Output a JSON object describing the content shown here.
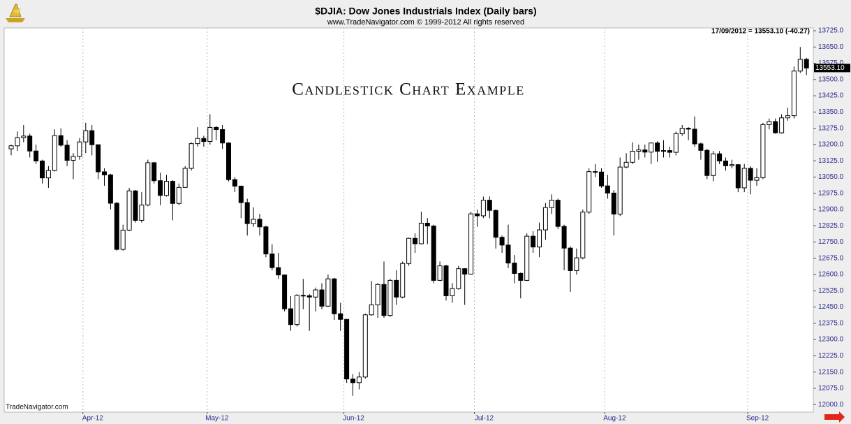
{
  "chart_data": {
    "type": "candlestick",
    "title": "$DJIA:  Dow Jones Industrials Index  (Daily bars)",
    "subtitle": "www.TradeNavigator.com © 1999-2012 All rights reserved",
    "info": "17/09/2012 = 13553.10 (-40.27)",
    "annotation": "Candlestick Chart Example",
    "watermark": "TradeNavigator.com",
    "last_price": {
      "value": 13553.1,
      "label": "13553.10"
    },
    "up_color": "#ffffff",
    "down_color": "#000000",
    "axis_label_color": "#2a2a8c",
    "categories": [
      null,
      null,
      null,
      null,
      null,
      null,
      null,
      null,
      null,
      null,
      null,
      null,
      "Apr-12",
      null,
      null,
      null,
      null,
      null,
      null,
      null,
      null,
      null,
      null,
      null,
      null,
      null,
      null,
      null,
      null,
      null,
      null,
      null,
      "May-12",
      null,
      null,
      null,
      null,
      null,
      null,
      null,
      null,
      null,
      null,
      null,
      null,
      null,
      null,
      null,
      null,
      null,
      null,
      null,
      null,
      null,
      "Jun-12",
      null,
      null,
      null,
      null,
      null,
      null,
      null,
      null,
      null,
      null,
      null,
      null,
      null,
      null,
      null,
      null,
      null,
      null,
      null,
      null,
      "Jul-12",
      null,
      null,
      null,
      null,
      null,
      null,
      null,
      null,
      null,
      null,
      null,
      null,
      null,
      null,
      null,
      null,
      null,
      null,
      null,
      null,
      "Aug-12",
      null,
      null,
      null,
      null,
      null,
      null,
      null,
      null,
      null,
      null,
      null,
      null,
      null,
      null,
      null,
      null,
      null,
      null,
      null,
      null,
      null,
      null,
      "Sep-12",
      null,
      null,
      null,
      null,
      null,
      null,
      null,
      null,
      null
    ],
    "open": [
      13180,
      13194,
      13232,
      13239,
      13170,
      13124,
      13046,
      13080,
      13241,
      13197,
      13127,
      13145,
      13212,
      13264,
      13199,
      13074,
      13060,
      12929,
      12716,
      12805,
      12986,
      12850,
      12921,
      13116,
      13033,
      12965,
      13030,
      12928,
      13002,
      13090,
      13204,
      13228,
      13214,
      13279,
      13269,
      13207,
      13038,
      13008,
      12932,
      12835,
      12855,
      12820,
      12695,
      12632,
      12598,
      12442,
      12369,
      12504,
      12502,
      12496,
      12529,
      12454,
      12580,
      12419,
      12393,
      12118,
      12101,
      12127,
      12414,
      12460,
      12554,
      12411,
      12573,
      12496,
      12651,
      12767,
      12742,
      12837,
      12824,
      12573,
      12640,
      12502,
      12535,
      12627,
      12602,
      12880,
      12871,
      12943,
      12896,
      12772,
      12736,
      12653,
      12605,
      12573,
      12777,
      12727,
      12806,
      12909,
      12943,
      12822,
      12722,
      12618,
      12677,
      12888,
      13075,
      13073,
      13009,
      12976,
      12879,
      13096,
      13118,
      13169,
      13175,
      13165,
      13207,
      13169,
      13172,
      13164,
      13250,
      13275,
      13271,
      13203,
      13173,
      13057,
      13157,
      13124,
      13102,
      13107,
      13000,
      13090,
      13035,
      13047,
      13292,
      13306,
      13254,
      13323,
      13333,
      13539,
      13593
    ],
    "high": [
      13200,
      13260,
      13290,
      13250,
      13200,
      13130,
      13100,
      13270,
      13275,
      13220,
      13160,
      13230,
      13300,
      13290,
      13200,
      13090,
      13065,
      12935,
      12830,
      13000,
      12990,
      12980,
      13130,
      13120,
      13070,
      13060,
      13035,
      13020,
      13100,
      13210,
      13280,
      13240,
      13340,
      13285,
      13290,
      13210,
      13050,
      13010,
      12950,
      12910,
      12880,
      12825,
      12740,
      12700,
      12600,
      12500,
      12510,
      12580,
      12510,
      12540,
      12560,
      12600,
      12585,
      12470,
      12395,
      12140,
      12150,
      12420,
      12570,
      12560,
      12660,
      12580,
      12620,
      12660,
      12770,
      12790,
      12890,
      12860,
      12830,
      12660,
      12645,
      12560,
      12640,
      12630,
      12890,
      12900,
      12960,
      12960,
      12900,
      12780,
      12830,
      12690,
      12610,
      12790,
      12800,
      12840,
      12930,
      12970,
      12950,
      12830,
      12730,
      12720,
      12900,
      13090,
      13110,
      13090,
      13060,
      12990,
      13140,
      13160,
      13210,
      13200,
      13200,
      13210,
      13215,
      13220,
      13190,
      13260,
      13290,
      13280,
      13330,
      13210,
      13180,
      13170,
      13170,
      13140,
      13130,
      13110,
      13110,
      13100,
      13090,
      13300,
      13320,
      13320,
      13340,
      13370,
      13560,
      13650,
      13600
    ],
    "low": [
      13150,
      13170,
      13210,
      13140,
      13110,
      13020,
      13000,
      13075,
      13190,
      13100,
      13040,
      13130,
      13160,
      13150,
      13040,
      13010,
      12900,
      12710,
      12710,
      12800,
      12840,
      12840,
      12915,
      13020,
      12920,
      12960,
      12850,
      12920,
      13000,
      13080,
      13190,
      13190,
      13200,
      13220,
      13180,
      13030,
      12980,
      12860,
      12780,
      12820,
      12780,
      12680,
      12620,
      12580,
      12430,
      12340,
      12360,
      12440,
      12340,
      12430,
      12440,
      12450,
      12390,
      12340,
      12100,
      12040,
      12070,
      12120,
      12410,
      12400,
      12400,
      12405,
      12460,
      12490,
      12640,
      12700,
      12740,
      12740,
      12560,
      12570,
      12480,
      12470,
      12530,
      12460,
      12600,
      12820,
      12860,
      12860,
      12720,
      12700,
      12630,
      12560,
      12490,
      12570,
      12700,
      12680,
      12760,
      12880,
      12810,
      12620,
      12520,
      12600,
      12670,
      12880,
      13050,
      13000,
      12950,
      12780,
      12870,
      13090,
      13110,
      13130,
      13140,
      13110,
      13120,
      13140,
      13140,
      13150,
      13240,
      13220,
      13190,
      13130,
      13040,
      13030,
      13110,
      13080,
      13090,
      12980,
      12980,
      12970,
      13010,
      13040,
      13270,
      13250,
      13250,
      13310,
      13320,
      13530,
      13520
    ],
    "close": [
      13194,
      13232,
      13239,
      13170,
      13124,
      13046,
      13080,
      13241,
      13197,
      13127,
      13145,
      13212,
      13264,
      13199,
      13074,
      13060,
      12929,
      12716,
      12805,
      12986,
      12850,
      12921,
      13116,
      13033,
      12965,
      13030,
      12928,
      13002,
      13090,
      13204,
      13228,
      13214,
      13279,
      13269,
      13207,
      13038,
      13008,
      12932,
      12835,
      12855,
      12820,
      12695,
      12632,
      12598,
      12442,
      12369,
      12504,
      12502,
      12496,
      12529,
      12454,
      12580,
      12419,
      12393,
      12118,
      12101,
      12127,
      12414,
      12460,
      12554,
      12411,
      12573,
      12496,
      12651,
      12767,
      12742,
      12837,
      12824,
      12573,
      12640,
      12502,
      12535,
      12627,
      12602,
      12880,
      12871,
      12943,
      12896,
      12772,
      12736,
      12653,
      12605,
      12573,
      12777,
      12727,
      12806,
      12909,
      12943,
      12822,
      12722,
      12618,
      12677,
      12888,
      13075,
      13073,
      13009,
      12976,
      12879,
      13096,
      13118,
      13169,
      13175,
      13165,
      13207,
      13169,
      13172,
      13164,
      13250,
      13275,
      13271,
      13203,
      13173,
      13057,
      13157,
      13124,
      13102,
      13107,
      13000,
      13090,
      13035,
      13047,
      13292,
      13306,
      13254,
      13323,
      13333,
      13539,
      13593,
      13553
    ],
    "ylim": [
      11965,
      13738
    ],
    "yticks": [
      {
        "value": 12000,
        "label": "12000.0"
      },
      {
        "value": 12075,
        "label": "12075.0"
      },
      {
        "value": 12150,
        "label": "12150.0"
      },
      {
        "value": 12225,
        "label": "12225.0"
      },
      {
        "value": 12300,
        "label": "12300.0"
      },
      {
        "value": 12375,
        "label": "12375.0"
      },
      {
        "value": 12450,
        "label": "12450.0"
      },
      {
        "value": 12525,
        "label": "12525.0"
      },
      {
        "value": 12600,
        "label": "12600.0"
      },
      {
        "value": 12675,
        "label": "12675.0"
      },
      {
        "value": 12750,
        "label": "12750.0"
      },
      {
        "value": 12825,
        "label": "12825.0"
      },
      {
        "value": 12900,
        "label": "12900.0"
      },
      {
        "value": 12975,
        "label": "12975.0"
      },
      {
        "value": 13050,
        "label": "13050.0"
      },
      {
        "value": 13125,
        "label": "13125.0"
      },
      {
        "value": 13200,
        "label": "13200.0"
      },
      {
        "value": 13275,
        "label": "13275.0"
      },
      {
        "value": 13350,
        "label": "13350.0"
      },
      {
        "value": 13425,
        "label": "13425.0"
      },
      {
        "value": 13500,
        "label": "13500.0"
      },
      {
        "value": 13575,
        "label": "13575.0"
      },
      {
        "value": 13650,
        "label": "13650.0"
      },
      {
        "value": 13725,
        "label": "13725.0"
      }
    ],
    "grid": false,
    "month_grid": true
  }
}
